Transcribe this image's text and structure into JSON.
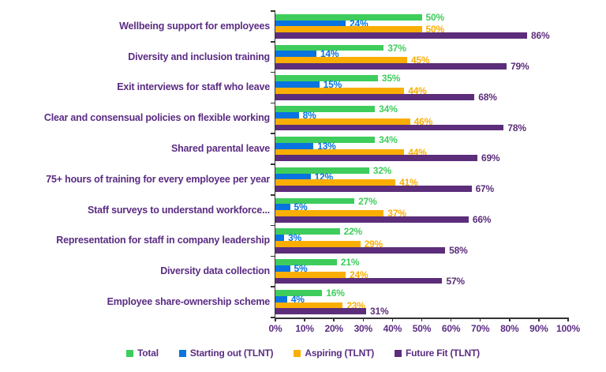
{
  "chart_data": {
    "type": "bar",
    "orientation": "horizontal",
    "title": "",
    "categories": [
      "Wellbeing support for employees",
      "Diversity and inclusion training",
      "Exit interviews for staff who leave",
      "Clear and consensual policies on flexible working",
      "Shared parental leave",
      "75+ hours of training for every employee per year",
      "Staff surveys to understand workforce...",
      "Representation for staff in company leadership",
      "Diversity data collection",
      "Employee share-ownership scheme"
    ],
    "series": [
      {
        "name": "Total",
        "color": "#3ECD5C",
        "values": [
          50,
          37,
          35,
          34,
          34,
          32,
          27,
          22,
          21,
          16
        ]
      },
      {
        "name": "Starting out (TLNT)",
        "color": "#0973E0",
        "values": [
          24,
          14,
          15,
          8,
          13,
          12,
          5,
          3,
          5,
          4
        ]
      },
      {
        "name": "Aspiring (TLNT)",
        "color": "#FAAE04",
        "values": [
          50,
          45,
          44,
          46,
          44,
          41,
          37,
          29,
          24,
          23
        ]
      },
      {
        "name": "Future Fit (TLNT)",
        "color": "#5C2D7A",
        "values": [
          86,
          79,
          68,
          78,
          69,
          67,
          66,
          58,
          57,
          31
        ]
      }
    ],
    "value_suffix": "%",
    "data_labels": true,
    "xlim": [
      0,
      100
    ],
    "x_ticks": [
      "0%",
      "10%",
      "20%",
      "30%",
      "40%",
      "50%",
      "60%",
      "70%",
      "80%",
      "90%",
      "100%"
    ],
    "grid": false,
    "legend_position": "bottom"
  },
  "colors": {
    "category_text": "#5B2C83",
    "tick_text": "#5B2C83",
    "legend_text": "#5B2C83",
    "axis_line": "#333333"
  }
}
